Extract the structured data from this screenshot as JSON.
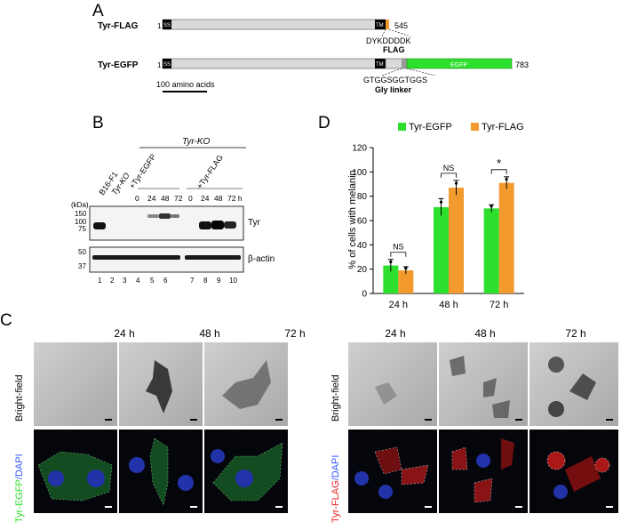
{
  "panels": {
    "a": "A",
    "b": "B",
    "c": "C",
    "d": "D"
  },
  "panelA": {
    "construct1": {
      "name": "Tyr-FLAG",
      "start": "1",
      "ss": "SS",
      "tm": "TM",
      "end": "545",
      "seq": "DYKDDDDK",
      "tag": "FLAG"
    },
    "construct2": {
      "name": "Tyr-EGFP",
      "start": "1",
      "ss": "SS",
      "tm": "TM",
      "egfp": "EGFP",
      "end": "783",
      "seq": "GTGGSGGTGGS",
      "tag": "Gly linker"
    },
    "scale": "100 amino acids",
    "colors": {
      "body": "#d9d9d9",
      "flag": "#f39a2f",
      "egfp": "#2de02d",
      "dark": "#000000"
    }
  },
  "panelB": {
    "group_title": "Tyr-KO",
    "lanes_top": [
      "B16-F1",
      "Tyr-KO"
    ],
    "egfp_label": "+Tyr-EGFP",
    "flag_label": "+Tyr-FLAG",
    "times_egfp": [
      "0",
      "24",
      "48",
      "72"
    ],
    "times_flag": [
      "0",
      "24",
      "48",
      "72 h"
    ],
    "kda": "(kDa)",
    "markers_top": [
      "150",
      "100",
      "75"
    ],
    "markers_bottom": [
      "50",
      "37"
    ],
    "band_top": "Tyr",
    "band_bottom": "β-actin",
    "lane_numbers": [
      "1",
      "2",
      "3",
      "4",
      "5",
      "6",
      "7",
      "8",
      "9",
      "10"
    ]
  },
  "chart_data": {
    "type": "bar",
    "categories": [
      "24 h",
      "48 h",
      "72 h"
    ],
    "series": [
      {
        "name": "Tyr-EGFP",
        "values": [
          23,
          71,
          70
        ],
        "errors": [
          5,
          7,
          3
        ],
        "color": "#2de02d"
      },
      {
        "name": "Tyr-FLAG",
        "values": [
          19,
          87,
          91
        ],
        "errors": [
          3,
          6,
          5
        ],
        "color": "#f39a2f"
      }
    ],
    "ylabel": "% of cells with melanin",
    "ylim": [
      0,
      120
    ],
    "yticks": [
      "0",
      "20",
      "40",
      "60",
      "80",
      "100",
      "120"
    ],
    "significance": [
      "NS",
      "NS",
      "*"
    ],
    "legend_position": "top"
  },
  "panelC": {
    "times": [
      "24 h",
      "48 h",
      "72 h"
    ],
    "bf_label": "Bright-field",
    "egfp_label": "Tyr-EGFP",
    "flag_label": "Tyr-FLAG",
    "dapi_label": "/DAPI"
  }
}
